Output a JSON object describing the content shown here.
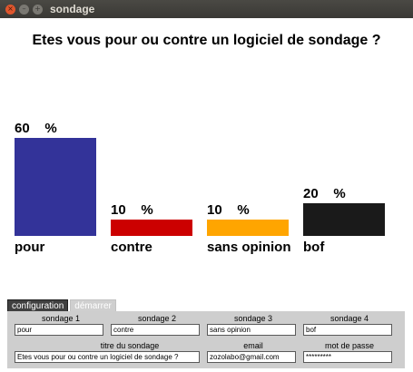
{
  "window": {
    "title": "sondage",
    "close_glyph": "×",
    "min_glyph": "–",
    "max_glyph": "+"
  },
  "question": "Etes vous pour ou contre un logiciel de sondage ?",
  "chart_data": {
    "type": "bar",
    "title": "Etes vous pour ou contre un logiciel de sondage ?",
    "categories": [
      "pour",
      "contre",
      "sans opinion",
      "bof"
    ],
    "values": [
      60,
      10,
      10,
      20
    ],
    "labels": [
      "60    %",
      "10    %",
      "10    %",
      "20    %"
    ],
    "colors": [
      "#333399",
      "#cc0000",
      "#ffa500",
      "#1a1a1a"
    ],
    "ylim": [
      0,
      60
    ],
    "xlabel": "",
    "ylabel": "",
    "grid": false
  },
  "tabs": [
    {
      "label": "configuration",
      "active": true
    },
    {
      "label": "démarrer",
      "active": false
    }
  ],
  "form": {
    "sondage1": {
      "label": "sondage 1",
      "value": "pour"
    },
    "sondage2": {
      "label": "sondage 2",
      "value": "contre"
    },
    "sondage3": {
      "label": "sondage 3",
      "value": "sans opinion"
    },
    "sondage4": {
      "label": "sondage 4",
      "value": "bof"
    },
    "titre": {
      "label": "titre du sondage",
      "value": "Etes vous pour ou contre un logiciel de sondage ?"
    },
    "email": {
      "label": "email",
      "value": "zozolabo@gmail.com"
    },
    "password": {
      "label": "mot de passe",
      "value": "*********"
    }
  }
}
